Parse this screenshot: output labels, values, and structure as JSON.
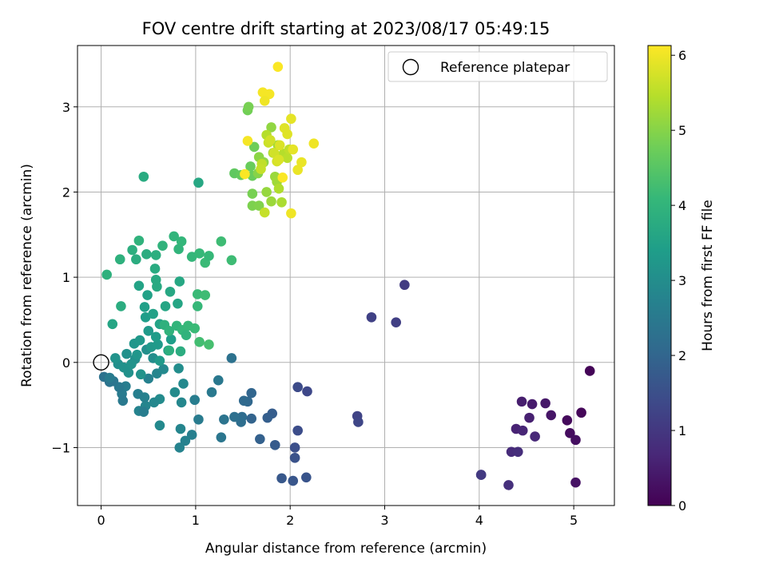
{
  "chart_data": {
    "type": "scatter",
    "title": "FOV centre drift starting at 2023/08/17 05:49:15",
    "xlabel": "Angular distance from reference (arcmin)",
    "ylabel": "Rotation from reference (arcmin)",
    "xlim": [
      -0.25,
      5.43
    ],
    "ylim": [
      -1.68,
      3.72
    ],
    "xticks": [
      0,
      1,
      2,
      3,
      4,
      5
    ],
    "yticks": [
      -1,
      0,
      1,
      2,
      3
    ],
    "grid": true,
    "legend": {
      "placement": "top-right",
      "entries": [
        {
          "label": "Reference platepar",
          "marker": "open-circle"
        }
      ]
    },
    "reference_point": {
      "x": 0,
      "y": 0
    },
    "colorbar": {
      "label": "Hours from first FF file",
      "colormap": "viridis",
      "range": [
        0,
        6.13
      ],
      "ticks": [
        0,
        1,
        2,
        3,
        4,
        5,
        6
      ]
    },
    "points": [
      {
        "x": 5.17,
        "y": -0.1,
        "c": 0.05
      },
      {
        "x": 5.08,
        "y": -0.59,
        "c": 0.1
      },
      {
        "x": 4.93,
        "y": -0.68,
        "c": 0.15
      },
      {
        "x": 4.96,
        "y": -0.83,
        "c": 0.2
      },
      {
        "x": 5.02,
        "y": -0.91,
        "c": 0.25
      },
      {
        "x": 5.02,
        "y": -1.41,
        "c": 0.3
      },
      {
        "x": 4.76,
        "y": -0.62,
        "c": 0.35
      },
      {
        "x": 4.7,
        "y": -0.48,
        "c": 0.4
      },
      {
        "x": 4.56,
        "y": -0.49,
        "c": 0.45
      },
      {
        "x": 4.45,
        "y": -0.46,
        "c": 0.5
      },
      {
        "x": 4.53,
        "y": -0.65,
        "c": 0.55
      },
      {
        "x": 4.39,
        "y": -0.78,
        "c": 0.6
      },
      {
        "x": 4.46,
        "y": -0.8,
        "c": 0.65
      },
      {
        "x": 4.59,
        "y": -0.87,
        "c": 0.7
      },
      {
        "x": 4.34,
        "y": -1.05,
        "c": 0.75
      },
      {
        "x": 4.41,
        "y": -1.05,
        "c": 0.8
      },
      {
        "x": 4.31,
        "y": -1.44,
        "c": 0.85
      },
      {
        "x": 4.02,
        "y": -1.32,
        "c": 1.0
      },
      {
        "x": 4.02,
        "y": -1.32,
        "c": 1.05
      },
      {
        "x": 3.21,
        "y": 0.91,
        "c": 1.1
      },
      {
        "x": 3.12,
        "y": 0.47,
        "c": 1.15
      },
      {
        "x": 2.86,
        "y": 0.53,
        "c": 1.2
      },
      {
        "x": 2.71,
        "y": -0.63,
        "c": 1.25
      },
      {
        "x": 2.72,
        "y": -0.7,
        "c": 1.3
      },
      {
        "x": 2.18,
        "y": -0.34,
        "c": 1.35
      },
      {
        "x": 2.08,
        "y": -0.29,
        "c": 1.4
      },
      {
        "x": 2.08,
        "y": -0.8,
        "c": 1.45
      },
      {
        "x": 2.05,
        "y": -1.0,
        "c": 1.5
      },
      {
        "x": 2.05,
        "y": -1.12,
        "c": 1.55
      },
      {
        "x": 2.17,
        "y": -1.35,
        "c": 1.6
      },
      {
        "x": 2.03,
        "y": -1.39,
        "c": 1.65
      },
      {
        "x": 1.91,
        "y": -1.36,
        "c": 1.7
      },
      {
        "x": 1.84,
        "y": -0.97,
        "c": 1.75
      },
      {
        "x": 1.81,
        "y": -0.6,
        "c": 1.8
      },
      {
        "x": 1.76,
        "y": -0.65,
        "c": 1.85
      },
      {
        "x": 1.68,
        "y": -0.9,
        "c": 1.9
      },
      {
        "x": 1.59,
        "y": -0.66,
        "c": 1.95
      },
      {
        "x": 1.59,
        "y": -0.36,
        "c": 2.0
      },
      {
        "x": 1.55,
        "y": -0.46,
        "c": 2.05
      },
      {
        "x": 1.51,
        "y": -0.45,
        "c": 2.1
      },
      {
        "x": 1.49,
        "y": -0.64,
        "c": 2.15
      },
      {
        "x": 1.48,
        "y": -0.7,
        "c": 2.2
      },
      {
        "x": 1.41,
        "y": -0.64,
        "c": 2.25
      },
      {
        "x": 1.38,
        "y": 0.05,
        "c": 2.3
      },
      {
        "x": 1.3,
        "y": -0.67,
        "c": 2.35
      },
      {
        "x": 1.27,
        "y": -0.88,
        "c": 2.4
      },
      {
        "x": 1.24,
        "y": -0.21,
        "c": 2.45
      },
      {
        "x": 1.17,
        "y": -0.35,
        "c": 2.5
      },
      {
        "x": 1.03,
        "y": -0.67,
        "c": 2.55
      },
      {
        "x": 0.99,
        "y": -0.44,
        "c": 2.6
      },
      {
        "x": 0.96,
        "y": -0.85,
        "c": 2.65
      },
      {
        "x": 0.89,
        "y": -0.92,
        "c": 2.7
      },
      {
        "x": 0.83,
        "y": -1.0,
        "c": 2.75
      },
      {
        "x": 0.84,
        "y": -0.78,
        "c": 2.8
      },
      {
        "x": 0.85,
        "y": -0.47,
        "c": 2.85
      },
      {
        "x": 0.87,
        "y": -0.25,
        "c": 2.9
      },
      {
        "x": 0.78,
        "y": -0.35,
        "c": 2.95
      },
      {
        "x": 0.82,
        "y": -0.07,
        "c": 3.0
      },
      {
        "x": 0.62,
        "y": -0.43,
        "c": 2.95
      },
      {
        "x": 0.62,
        "y": -0.74,
        "c": 2.9
      },
      {
        "x": 0.56,
        "y": -0.47,
        "c": 2.85
      },
      {
        "x": 0.47,
        "y": -0.51,
        "c": 2.8
      },
      {
        "x": 0.4,
        "y": -0.57,
        "c": 2.75
      },
      {
        "x": 0.46,
        "y": -0.41,
        "c": 2.7
      },
      {
        "x": 0.39,
        "y": -0.37,
        "c": 2.65
      },
      {
        "x": 0.26,
        "y": -0.28,
        "c": 2.6
      },
      {
        "x": 0.22,
        "y": -0.37,
        "c": 2.55
      },
      {
        "x": 0.23,
        "y": -0.45,
        "c": 2.5
      },
      {
        "x": 0.19,
        "y": -0.29,
        "c": 2.45
      },
      {
        "x": 0.13,
        "y": -0.22,
        "c": 2.4
      },
      {
        "x": 0.09,
        "y": -0.23,
        "c": 2.35
      },
      {
        "x": 0.03,
        "y": -0.17,
        "c": 2.3
      },
      {
        "x": 0.09,
        "y": -0.18,
        "c": 2.55
      },
      {
        "x": 0.45,
        "y": -0.58,
        "c": 2.6
      },
      {
        "x": 0.5,
        "y": -0.19,
        "c": 2.7
      },
      {
        "x": 0.59,
        "y": -0.13,
        "c": 2.8
      },
      {
        "x": 0.66,
        "y": -0.08,
        "c": 2.9
      },
      {
        "x": 0.55,
        "y": 0.05,
        "c": 3.0
      },
      {
        "x": 0.48,
        "y": 0.15,
        "c": 3.05
      },
      {
        "x": 0.36,
        "y": 0.04,
        "c": 3.05
      },
      {
        "x": 0.29,
        "y": -0.12,
        "c": 3.1
      },
      {
        "x": 0.27,
        "y": 0.1,
        "c": 3.1
      },
      {
        "x": 0.18,
        "y": -0.02,
        "c": 3.05
      },
      {
        "x": 0.15,
        "y": 0.05,
        "c": 3.15
      },
      {
        "x": 0.24,
        "y": -0.06,
        "c": 3.1
      },
      {
        "x": 0.32,
        "y": -0.02,
        "c": 3.15
      },
      {
        "x": 0.38,
        "y": 0.09,
        "c": 3.2
      },
      {
        "x": 0.42,
        "y": -0.14,
        "c": 3.15
      },
      {
        "x": 0.35,
        "y": 0.22,
        "c": 3.2
      },
      {
        "x": 0.41,
        "y": 0.26,
        "c": 3.25
      },
      {
        "x": 0.53,
        "y": 0.18,
        "c": 3.25
      },
      {
        "x": 0.6,
        "y": 0.21,
        "c": 3.3
      },
      {
        "x": 0.62,
        "y": 0.02,
        "c": 3.3
      },
      {
        "x": 0.71,
        "y": 0.14,
        "c": 3.35
      },
      {
        "x": 0.74,
        "y": 0.27,
        "c": 3.4
      },
      {
        "x": 0.58,
        "y": 0.3,
        "c": 3.35
      },
      {
        "x": 0.5,
        "y": 0.37,
        "c": 3.3
      },
      {
        "x": 0.47,
        "y": 0.53,
        "c": 3.4
      },
      {
        "x": 0.46,
        "y": 0.65,
        "c": 3.45
      },
      {
        "x": 0.49,
        "y": 0.79,
        "c": 3.5
      },
      {
        "x": 0.4,
        "y": 0.9,
        "c": 3.55
      },
      {
        "x": 0.55,
        "y": 0.57,
        "c": 3.5
      },
      {
        "x": 0.62,
        "y": 0.45,
        "c": 3.55
      },
      {
        "x": 0.68,
        "y": 0.66,
        "c": 3.6
      },
      {
        "x": 0.73,
        "y": 0.83,
        "c": 3.65
      },
      {
        "x": 0.81,
        "y": 0.69,
        "c": 3.6
      },
      {
        "x": 0.83,
        "y": 0.95,
        "c": 3.65
      },
      {
        "x": 0.59,
        "y": 0.89,
        "c": 3.7
      },
      {
        "x": 0.58,
        "y": 0.97,
        "c": 3.7
      },
      {
        "x": 0.57,
        "y": 1.1,
        "c": 3.75
      },
      {
        "x": 0.37,
        "y": 1.21,
        "c": 3.8
      },
      {
        "x": 0.48,
        "y": 1.27,
        "c": 3.8
      },
      {
        "x": 0.58,
        "y": 1.26,
        "c": 3.85
      },
      {
        "x": 0.33,
        "y": 1.32,
        "c": 3.85
      },
      {
        "x": 0.2,
        "y": 1.21,
        "c": 3.9
      },
      {
        "x": 0.06,
        "y": 1.03,
        "c": 3.9
      },
      {
        "x": 0.12,
        "y": 0.45,
        "c": 3.6
      },
      {
        "x": 0.21,
        "y": 0.66,
        "c": 3.8
      },
      {
        "x": 0.4,
        "y": 1.43,
        "c": 3.95
      },
      {
        "x": 0.65,
        "y": 1.37,
        "c": 3.95
      },
      {
        "x": 0.77,
        "y": 1.48,
        "c": 4.0
      },
      {
        "x": 0.82,
        "y": 1.33,
        "c": 4.0
      },
      {
        "x": 0.85,
        "y": 1.42,
        "c": 4.05
      },
      {
        "x": 0.96,
        "y": 1.24,
        "c": 4.05
      },
      {
        "x": 1.04,
        "y": 1.28,
        "c": 4.1
      },
      {
        "x": 1.1,
        "y": 1.17,
        "c": 4.15
      },
      {
        "x": 1.14,
        "y": 1.25,
        "c": 4.1
      },
      {
        "x": 1.27,
        "y": 1.42,
        "c": 4.2
      },
      {
        "x": 1.38,
        "y": 1.2,
        "c": 4.2
      },
      {
        "x": 0.67,
        "y": 0.44,
        "c": 3.9
      },
      {
        "x": 0.72,
        "y": 0.37,
        "c": 3.95
      },
      {
        "x": 0.8,
        "y": 0.43,
        "c": 4.0
      },
      {
        "x": 0.86,
        "y": 0.38,
        "c": 4.05
      },
      {
        "x": 0.92,
        "y": 0.43,
        "c": 4.1
      },
      {
        "x": 0.99,
        "y": 0.4,
        "c": 4.15
      },
      {
        "x": 1.02,
        "y": 0.66,
        "c": 4.1
      },
      {
        "x": 1.02,
        "y": 0.8,
        "c": 4.15
      },
      {
        "x": 1.1,
        "y": 0.79,
        "c": 4.2
      },
      {
        "x": 1.04,
        "y": 0.24,
        "c": 4.25
      },
      {
        "x": 1.14,
        "y": 0.21,
        "c": 4.3
      },
      {
        "x": 0.9,
        "y": 0.32,
        "c": 3.95
      },
      {
        "x": 0.72,
        "y": 0.14,
        "c": 3.85
      },
      {
        "x": 0.84,
        "y": 0.13,
        "c": 3.8
      },
      {
        "x": 0.45,
        "y": 2.18,
        "c": 3.75
      },
      {
        "x": 1.03,
        "y": 2.11,
        "c": 3.65
      },
      {
        "x": 1.41,
        "y": 2.22,
        "c": 4.6
      },
      {
        "x": 1.48,
        "y": 2.2,
        "c": 4.65
      },
      {
        "x": 1.58,
        "y": 2.3,
        "c": 4.7
      },
      {
        "x": 1.6,
        "y": 2.19,
        "c": 4.7
      },
      {
        "x": 1.62,
        "y": 2.53,
        "c": 4.75
      },
      {
        "x": 1.55,
        "y": 2.96,
        "c": 4.8
      },
      {
        "x": 1.56,
        "y": 3.0,
        "c": 4.85
      },
      {
        "x": 1.6,
        "y": 1.98,
        "c": 4.85
      },
      {
        "x": 1.6,
        "y": 1.84,
        "c": 4.9
      },
      {
        "x": 1.67,
        "y": 1.84,
        "c": 4.95
      },
      {
        "x": 1.66,
        "y": 2.22,
        "c": 5.0
      },
      {
        "x": 1.67,
        "y": 2.41,
        "c": 5.05
      },
      {
        "x": 1.72,
        "y": 2.35,
        "c": 5.1
      },
      {
        "x": 1.75,
        "y": 2.0,
        "c": 5.15
      },
      {
        "x": 1.8,
        "y": 1.89,
        "c": 5.2
      },
      {
        "x": 1.84,
        "y": 2.18,
        "c": 5.2
      },
      {
        "x": 1.86,
        "y": 2.12,
        "c": 5.25
      },
      {
        "x": 1.82,
        "y": 2.46,
        "c": 5.3
      },
      {
        "x": 1.87,
        "y": 2.55,
        "c": 5.3
      },
      {
        "x": 1.91,
        "y": 1.88,
        "c": 5.35
      },
      {
        "x": 1.88,
        "y": 2.04,
        "c": 5.4
      },
      {
        "x": 1.93,
        "y": 2.45,
        "c": 5.45
      },
      {
        "x": 1.97,
        "y": 2.4,
        "c": 5.5
      },
      {
        "x": 1.99,
        "y": 2.5,
        "c": 5.55
      },
      {
        "x": 1.8,
        "y": 2.76,
        "c": 5.1
      },
      {
        "x": 1.75,
        "y": 2.67,
        "c": 5.45
      },
      {
        "x": 1.7,
        "y": 2.33,
        "c": 5.55
      },
      {
        "x": 1.73,
        "y": 1.76,
        "c": 5.6
      },
      {
        "x": 1.69,
        "y": 2.27,
        "c": 5.6
      },
      {
        "x": 1.77,
        "y": 2.58,
        "c": 5.65
      },
      {
        "x": 1.79,
        "y": 2.61,
        "c": 5.7
      },
      {
        "x": 1.83,
        "y": 2.46,
        "c": 5.7
      },
      {
        "x": 1.86,
        "y": 2.36,
        "c": 5.75
      },
      {
        "x": 1.88,
        "y": 2.38,
        "c": 5.8
      },
      {
        "x": 1.89,
        "y": 2.55,
        "c": 5.8
      },
      {
        "x": 1.94,
        "y": 2.75,
        "c": 5.85
      },
      {
        "x": 1.97,
        "y": 2.68,
        "c": 5.85
      },
      {
        "x": 2.01,
        "y": 2.86,
        "c": 5.9
      },
      {
        "x": 2.03,
        "y": 2.5,
        "c": 5.9
      },
      {
        "x": 2.08,
        "y": 2.26,
        "c": 5.95
      },
      {
        "x": 2.12,
        "y": 2.35,
        "c": 5.95
      },
      {
        "x": 2.01,
        "y": 1.75,
        "c": 6.0
      },
      {
        "x": 2.25,
        "y": 2.57,
        "c": 6.0
      },
      {
        "x": 1.71,
        "y": 3.17,
        "c": 6.05
      },
      {
        "x": 1.78,
        "y": 3.15,
        "c": 6.05
      },
      {
        "x": 1.73,
        "y": 3.07,
        "c": 6.0
      },
      {
        "x": 1.87,
        "y": 3.47,
        "c": 6.1
      },
      {
        "x": 1.55,
        "y": 2.6,
        "c": 6.05
      },
      {
        "x": 1.52,
        "y": 2.21,
        "c": 6.1
      },
      {
        "x": 1.92,
        "y": 2.17,
        "c": 6.1
      }
    ]
  }
}
